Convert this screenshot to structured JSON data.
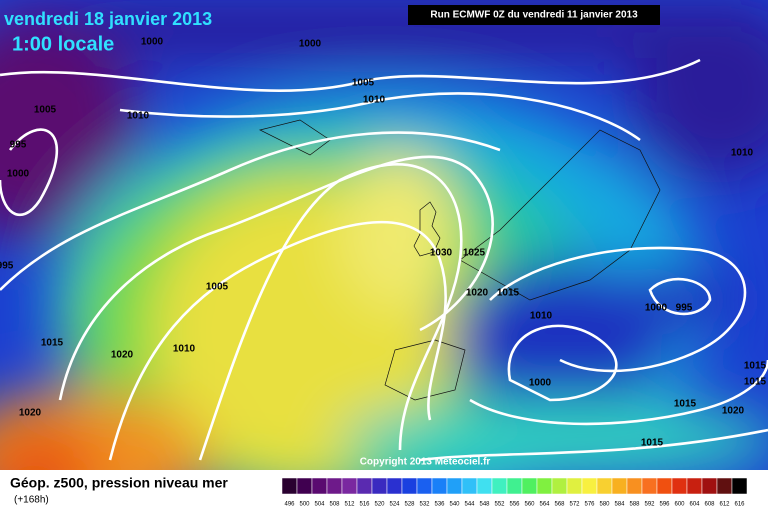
{
  "title": "vendredi 18 janvier 2013",
  "subtitle": "1:00 locale",
  "run_info": "Run ECMWF 0Z du vendredi 11 janvier 2013",
  "copyright": "Copyright 2013 Meteociel.fr",
  "legend": {
    "label": "Géop. z500, pression niveau mer",
    "lead": "(+168h)",
    "scale": [
      "496",
      "500",
      "504",
      "508",
      "512",
      "516",
      "520",
      "524",
      "528",
      "532",
      "536",
      "540",
      "544",
      "548",
      "552",
      "556",
      "560",
      "564",
      "568",
      "572",
      "576",
      "580",
      "584",
      "588",
      "592",
      "596",
      "600",
      "604",
      "608",
      "612",
      "616"
    ]
  },
  "isobar_labels": [
    "1000",
    "1000",
    "1005",
    "1010",
    "995",
    "1000",
    "995",
    "1005",
    "1010",
    "1010",
    "1005",
    "1015",
    "1020",
    "1010",
    "1030",
    "1025",
    "1020",
    "1015",
    "1010",
    "1000",
    "995",
    "1000",
    "1015",
    "1015",
    "1015",
    "1020",
    "1015",
    "1020"
  ]
}
